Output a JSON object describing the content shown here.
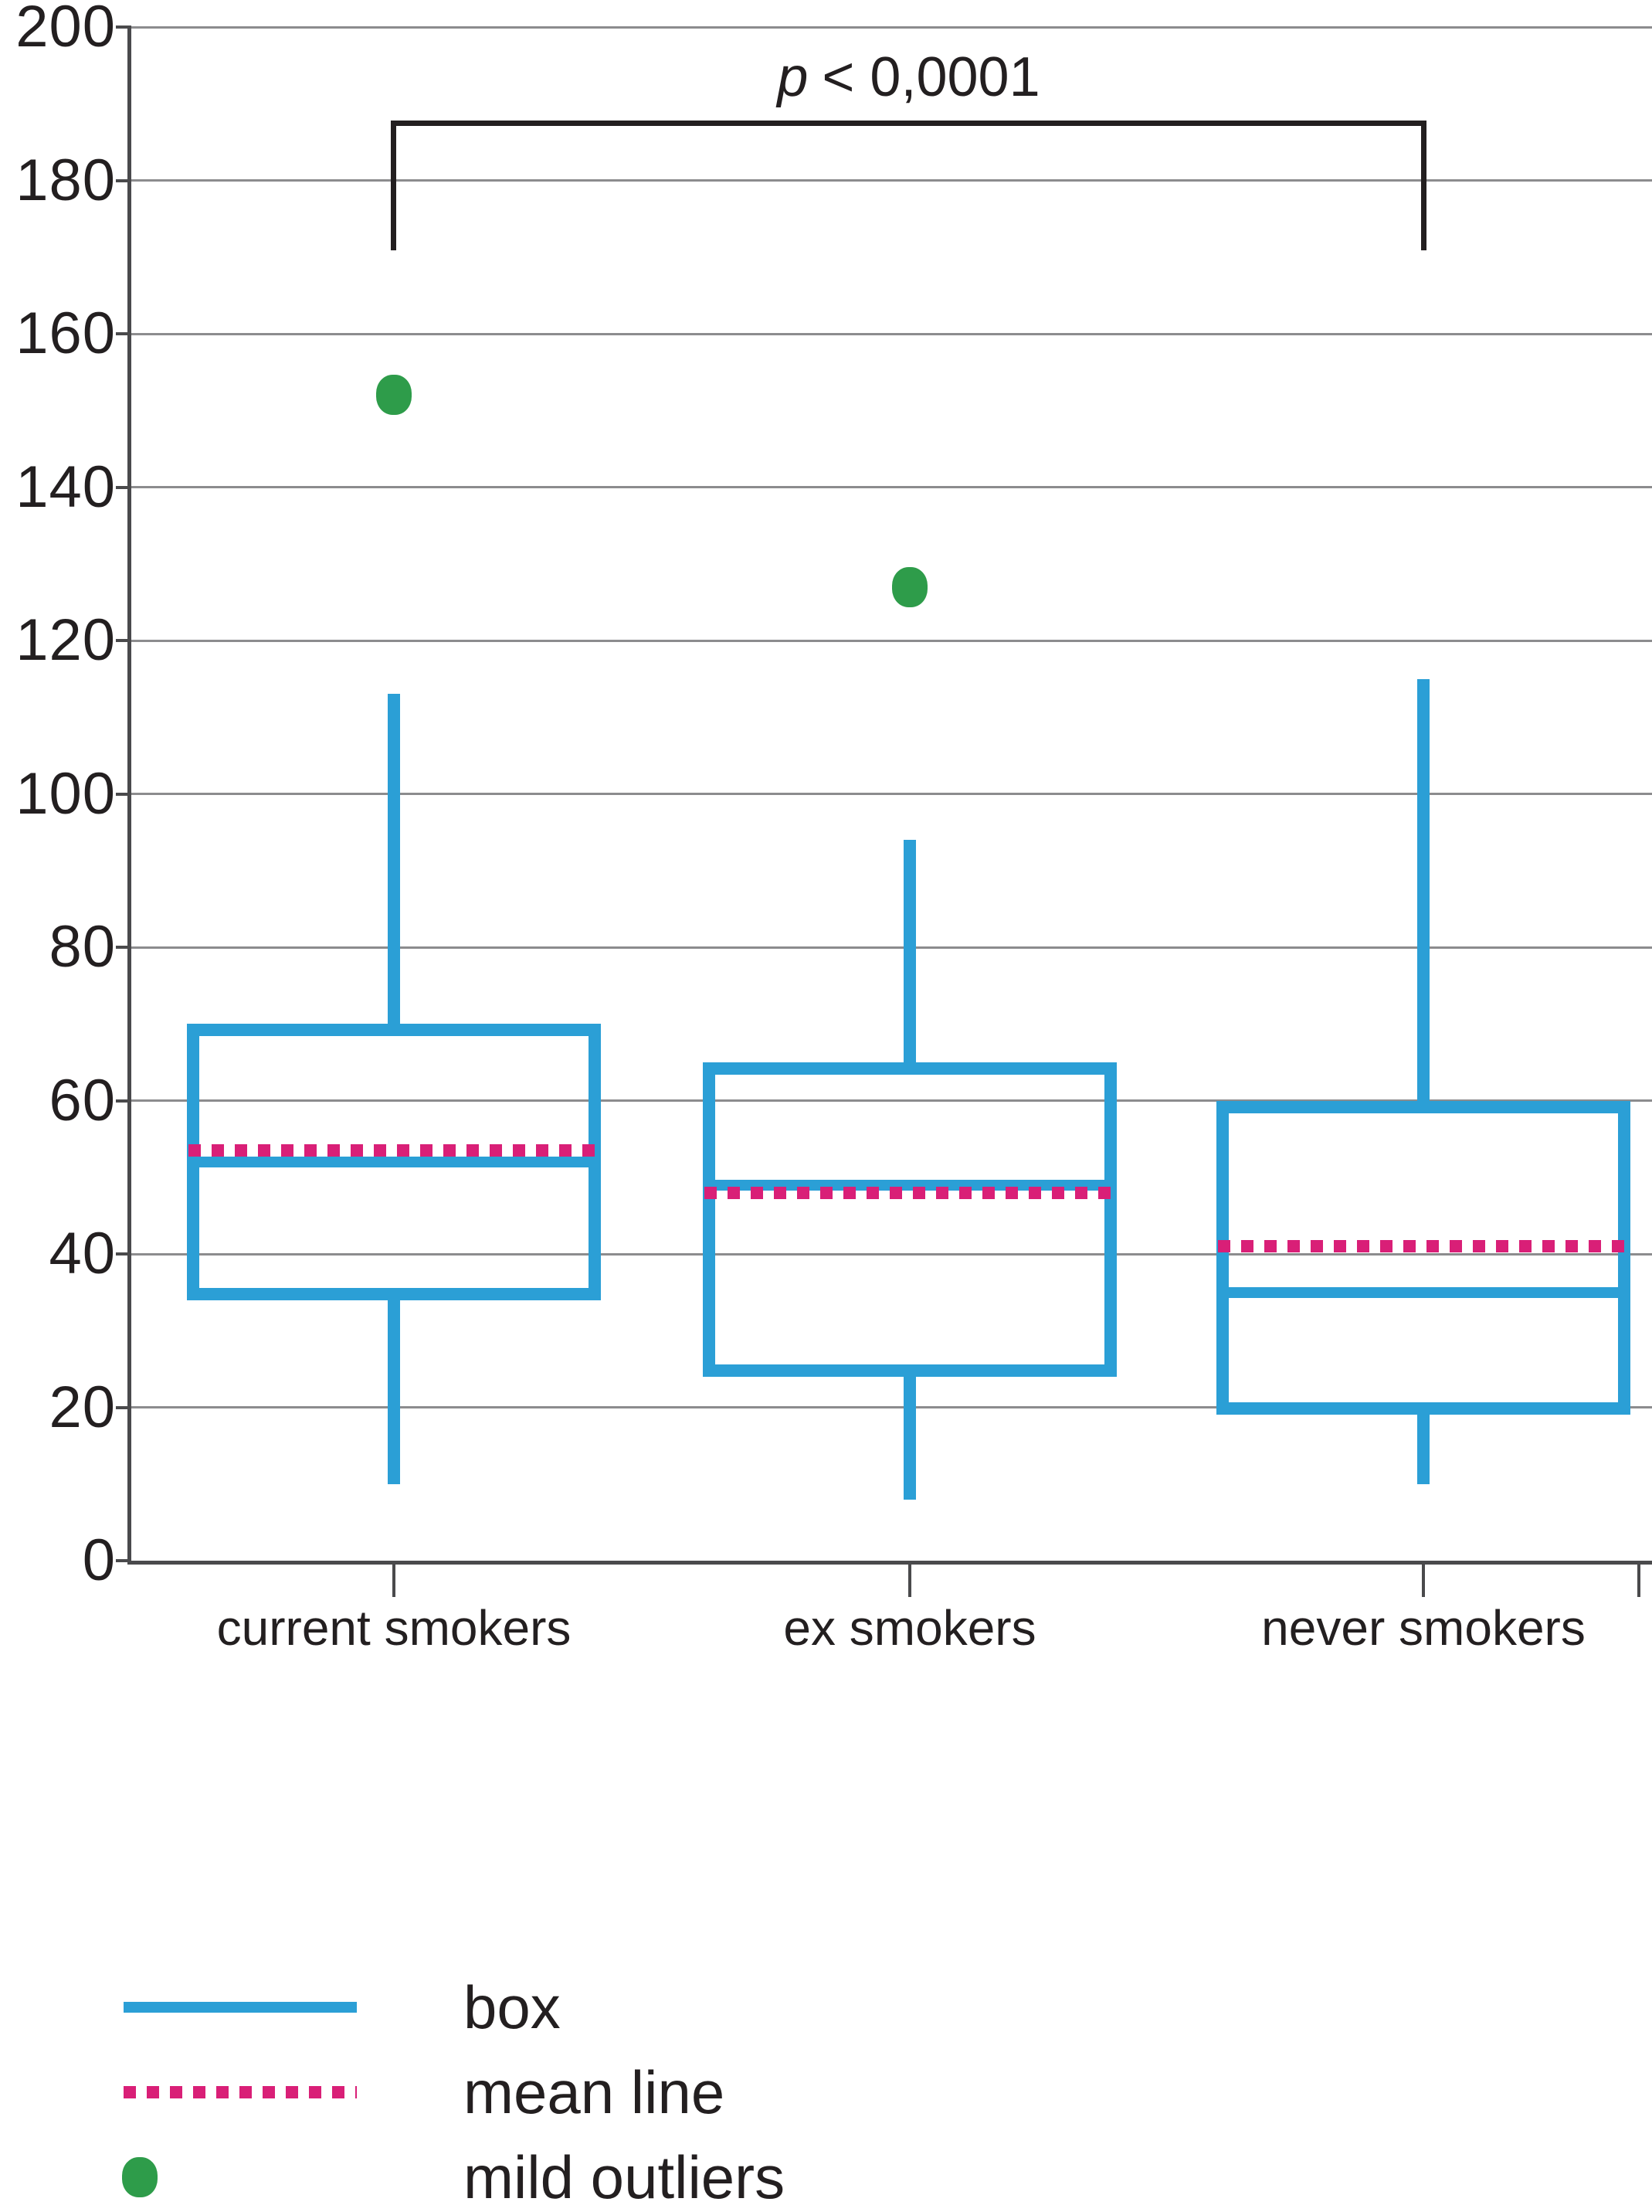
{
  "chart_data": {
    "type": "box",
    "title": "",
    "p_annotation": {
      "symbol": "p",
      "text": "< 0,0001"
    },
    "categories": [
      "current smokers",
      "ex smokers",
      "never smokers"
    ],
    "ylim": [
      0,
      200
    ],
    "yticks": [
      0,
      20,
      40,
      60,
      80,
      100,
      120,
      140,
      160,
      180,
      200
    ],
    "grid": true,
    "legend_position": "bottom-left",
    "series": [
      {
        "category": "current smokers",
        "whisker_low": 10,
        "q1": 34,
        "median": 52,
        "mean": 53.5,
        "q3": 70,
        "whisker_high": 113,
        "outliers": [
          152
        ]
      },
      {
        "category": "ex smokers",
        "whisker_low": 8,
        "q1": 24,
        "median": 49,
        "mean": 48,
        "q3": 65,
        "whisker_high": 94,
        "outliers": [
          127
        ]
      },
      {
        "category": "never smokers",
        "whisker_low": 10,
        "q1": 19,
        "median": 35,
        "mean": 41,
        "q3": 60,
        "whisker_high": 115,
        "outliers": []
      }
    ],
    "significance": {
      "between": [
        "current smokers",
        "never smokers"
      ]
    },
    "legend": [
      {
        "label": "box",
        "swatch": "line"
      },
      {
        "label": "mean line",
        "swatch": "dotted"
      },
      {
        "label": "mild outliers",
        "swatch": "dot"
      }
    ],
    "colors": {
      "box": "#2B9FD6",
      "mean_line": "#D91F77",
      "outlier": "#2E9C4A",
      "grid": "#8C8C8E",
      "axis": "#4A4A4C",
      "text": "#231F20"
    }
  }
}
